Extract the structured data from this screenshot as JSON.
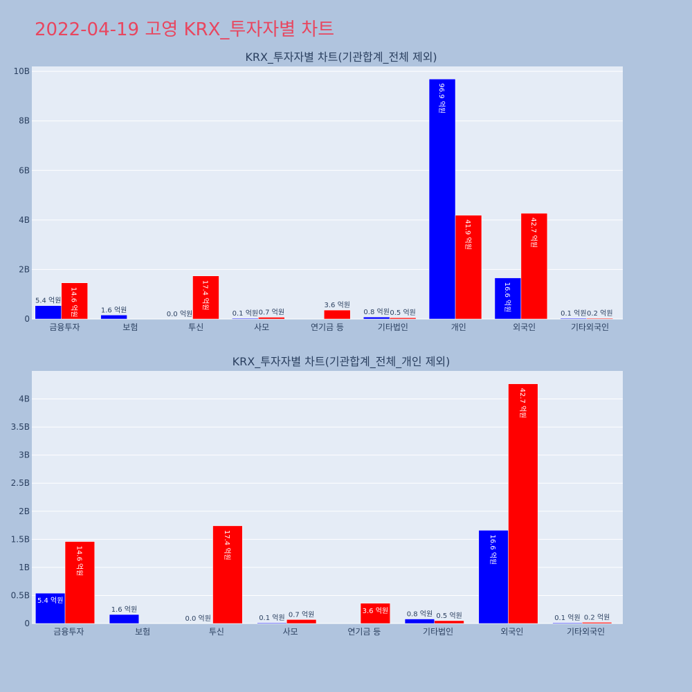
{
  "page": {
    "title": "2022-04-19 고영 KRX_투자자별 차트"
  },
  "colors": {
    "buy": "#0000ff",
    "sell": "#ff0000",
    "plot_bg": "#e5ecf6",
    "page_bg": "#b0c4de",
    "title": "#e8465f"
  },
  "chart_data": [
    {
      "type": "bar",
      "title": "KRX_투자자별 차트(기관합계_전체 제외)",
      "categories": [
        "금융투자",
        "보험",
        "투신",
        "사모",
        "연기금 등",
        "기타법인",
        "개인",
        "외국인",
        "기타외국인"
      ],
      "series": [
        {
          "color": "#0000ff",
          "values": [
            540000000,
            160000000,
            0,
            10000000,
            0,
            80000000,
            9690000000,
            1660000000,
            10000000
          ],
          "labels": [
            "5.4 억원",
            "1.6 억원",
            "0.0 억원",
            "0.1 억원",
            "",
            "0.8 억원",
            "96.9 억원",
            "16.6 억원",
            "0.1 억원"
          ]
        },
        {
          "color": "#ff0000",
          "values": [
            1460000000,
            0,
            1740000000,
            70000000,
            360000000,
            50000000,
            4190000000,
            4270000000,
            20000000
          ],
          "labels": [
            "14.6 억원",
            "",
            "17.4 억원",
            "0.7 억원",
            "3.6 억원",
            "0.5 억원",
            "41.9 억원",
            "42.7 억원",
            "0.2 억원"
          ]
        }
      ],
      "yticks": [
        0,
        2000000000,
        4000000000,
        6000000000,
        8000000000,
        10000000000
      ],
      "yticklabels": [
        "0",
        "2B",
        "4B",
        "6B",
        "8B",
        "10B"
      ],
      "ylim": [
        0,
        10200000000
      ],
      "grid": true
    },
    {
      "type": "bar",
      "title": "KRX_투자자별 차트(기관합계_전체_개인 제외)",
      "categories": [
        "금융투자",
        "보험",
        "투신",
        "사모",
        "연기금 등",
        "기타법인",
        "외국인",
        "기타외국인"
      ],
      "series": [
        {
          "color": "#0000ff",
          "values": [
            540000000,
            160000000,
            0,
            10000000,
            0,
            80000000,
            1660000000,
            10000000
          ],
          "labels": [
            "5.4 억원",
            "1.6 억원",
            "0.0 억원",
            "0.1 억원",
            "",
            "0.8 억원",
            "16.6 억원",
            "0.1 억원"
          ]
        },
        {
          "color": "#ff0000",
          "values": [
            1460000000,
            0,
            1740000000,
            70000000,
            360000000,
            50000000,
            4270000000,
            20000000
          ],
          "labels": [
            "14.6 억원",
            "",
            "17.4 억원",
            "0.7 억원",
            "3.6 억원",
            "0.5 억원",
            "42.7 억원",
            "0.2 억원"
          ]
        }
      ],
      "yticks": [
        0,
        500000000,
        1000000000,
        1500000000,
        2000000000,
        2500000000,
        3000000000,
        3500000000,
        4000000000
      ],
      "yticklabels": [
        "0",
        "0.5B",
        "1B",
        "1.5B",
        "2B",
        "2.5B",
        "3B",
        "3.5B",
        "4B"
      ],
      "ylim": [
        0,
        4500000000
      ],
      "grid": true
    }
  ]
}
